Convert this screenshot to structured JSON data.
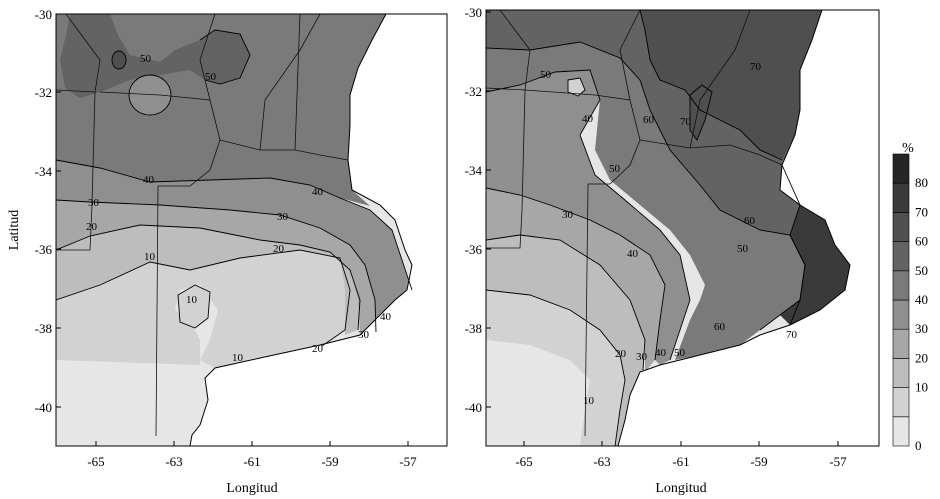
{
  "maps": [
    {
      "id": "left",
      "x_label": "Longitud",
      "y_label": "Latitud",
      "x_ticks": [
        "-65",
        "-63",
        "-61",
        "-59",
        "-57"
      ],
      "y_ticks": [
        "-30",
        "-32",
        "-34",
        "-36",
        "-38",
        "-40"
      ],
      "contour_labels": [
        "50",
        "50",
        "40",
        "40",
        "30",
        "30",
        "30",
        "20",
        "20",
        "20",
        "10",
        "10",
        "10",
        "40"
      ]
    },
    {
      "id": "right",
      "x_label": "Longitud",
      "y_ticks": [
        "-30",
        "-32",
        "-34",
        "-36",
        "-38",
        "-40"
      ],
      "x_ticks": [
        "-65",
        "-63",
        "-61",
        "-59",
        "-57"
      ],
      "contour_labels": [
        "50",
        "40",
        "60",
        "70",
        "70",
        "50",
        "30",
        "40",
        "50",
        "60",
        "60",
        "20",
        "30",
        "40",
        "50",
        "10",
        "70"
      ]
    }
  ],
  "legend": {
    "unit": "%",
    "levels": [
      "0",
      "10",
      "20",
      "30",
      "40",
      "50",
      "60",
      "70",
      "80"
    ],
    "colors": [
      "#e6e6e6",
      "#d2d2d2",
      "#bdbdbd",
      "#a7a7a7",
      "#8f8f8f",
      "#7a7a7a",
      "#636363",
      "#4f4f4f",
      "#3a3a3a",
      "#262626"
    ]
  }
}
